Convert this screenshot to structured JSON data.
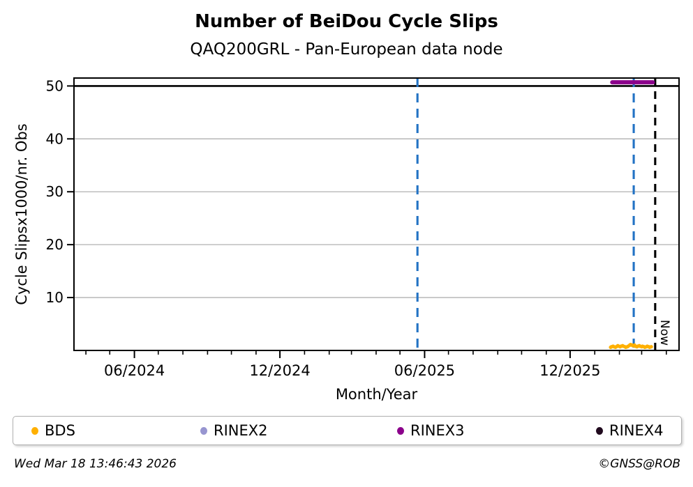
{
  "title": "Number of BeiDou Cycle Slips",
  "subtitle": "QAQ200GRL - Pan-European data node",
  "footer": {
    "timestamp": "Wed Mar 18 13:46:43 2026",
    "credit": "©GNSS@ROB"
  },
  "legend": {
    "entries": [
      {
        "label": "BDS",
        "color": "#FFB000"
      },
      {
        "label": "RINEX2",
        "color": "#9795D0"
      },
      {
        "label": "RINEX3",
        "color": "#8B008B"
      },
      {
        "label": "RINEX4",
        "color": "#200A1E"
      }
    ]
  },
  "chart_data": {
    "type": "scatter",
    "title": "Number of BeiDou Cycle Slips",
    "subtitle": "QAQ200GRL - Pan-European data node",
    "xlabel": "Month/Year",
    "ylabel": "Cycle Slipsx1000/nr. Obs",
    "xlim": [
      "2024-03-17",
      "2026-04-17"
    ],
    "ylim": [
      0,
      51.5
    ],
    "grid": true,
    "grid_color": "#b0b0b0",
    "y_ticks": [
      10,
      20,
      30,
      40,
      50
    ],
    "x_ticks": [
      {
        "label": "06/2024",
        "date": "2024-06-01"
      },
      {
        "label": "12/2024",
        "date": "2024-12-01"
      },
      {
        "label": "06/2025",
        "date": "2025-06-01"
      },
      {
        "label": "12/2025",
        "date": "2025-12-01"
      }
    ],
    "minor_tick_interval": "1 month",
    "hlines": [
      {
        "y": 50,
        "color": "#000000",
        "style": "solid"
      }
    ],
    "vlines": [
      {
        "date": "2025-05-23",
        "color": "#2272C4",
        "style": "dashed",
        "label": ""
      },
      {
        "date": "2026-02-19",
        "color": "#2272C4",
        "style": "dashed",
        "label": ""
      },
      {
        "date": "2026-03-18",
        "color": "#000000",
        "style": "dashed",
        "label": "Now"
      }
    ],
    "series": [
      {
        "name": "BDS",
        "color": "#FFB000",
        "marker": "dot",
        "dates": [
          "2026-01-21",
          "2026-01-22",
          "2026-01-24",
          "2026-01-25",
          "2026-01-27",
          "2026-01-28",
          "2026-01-30",
          "2026-01-31",
          "2026-02-02",
          "2026-02-03",
          "2026-02-05",
          "2026-02-06",
          "2026-02-08",
          "2026-02-09",
          "2026-02-11",
          "2026-02-12",
          "2026-02-14",
          "2026-02-15",
          "2026-02-17",
          "2026-02-18",
          "2026-02-20",
          "2026-02-21",
          "2026-02-23",
          "2026-02-24",
          "2026-02-26",
          "2026-02-27",
          "2026-03-01",
          "2026-03-02",
          "2026-03-04",
          "2026-03-05",
          "2026-03-07",
          "2026-03-08",
          "2026-03-10",
          "2026-03-11",
          "2026-03-13"
        ],
        "values": [
          0.6,
          0.7,
          0.8,
          0.7,
          0.6,
          0.7,
          0.9,
          0.8,
          0.7,
          0.8,
          0.9,
          0.8,
          0.7,
          0.6,
          0.7,
          0.8,
          1.0,
          1.1,
          1.0,
          0.9,
          1.0,
          0.8,
          0.7,
          0.8,
          0.9,
          0.8,
          0.7,
          0.8,
          0.7,
          0.6,
          0.7,
          0.8,
          0.7,
          0.6,
          0.7
        ]
      },
      {
        "name": "RINEX2",
        "color": "#9795D0",
        "marker": "dot",
        "dates": [],
        "values": []
      },
      {
        "name": "RINEX3",
        "color": "#8B008B",
        "marker": "thick-line",
        "dates": [
          "2026-01-23",
          "2026-03-15"
        ],
        "values": [
          50.7,
          50.7
        ]
      },
      {
        "name": "RINEX4",
        "color": "#200A1E",
        "marker": "dot",
        "dates": [],
        "values": []
      }
    ]
  }
}
